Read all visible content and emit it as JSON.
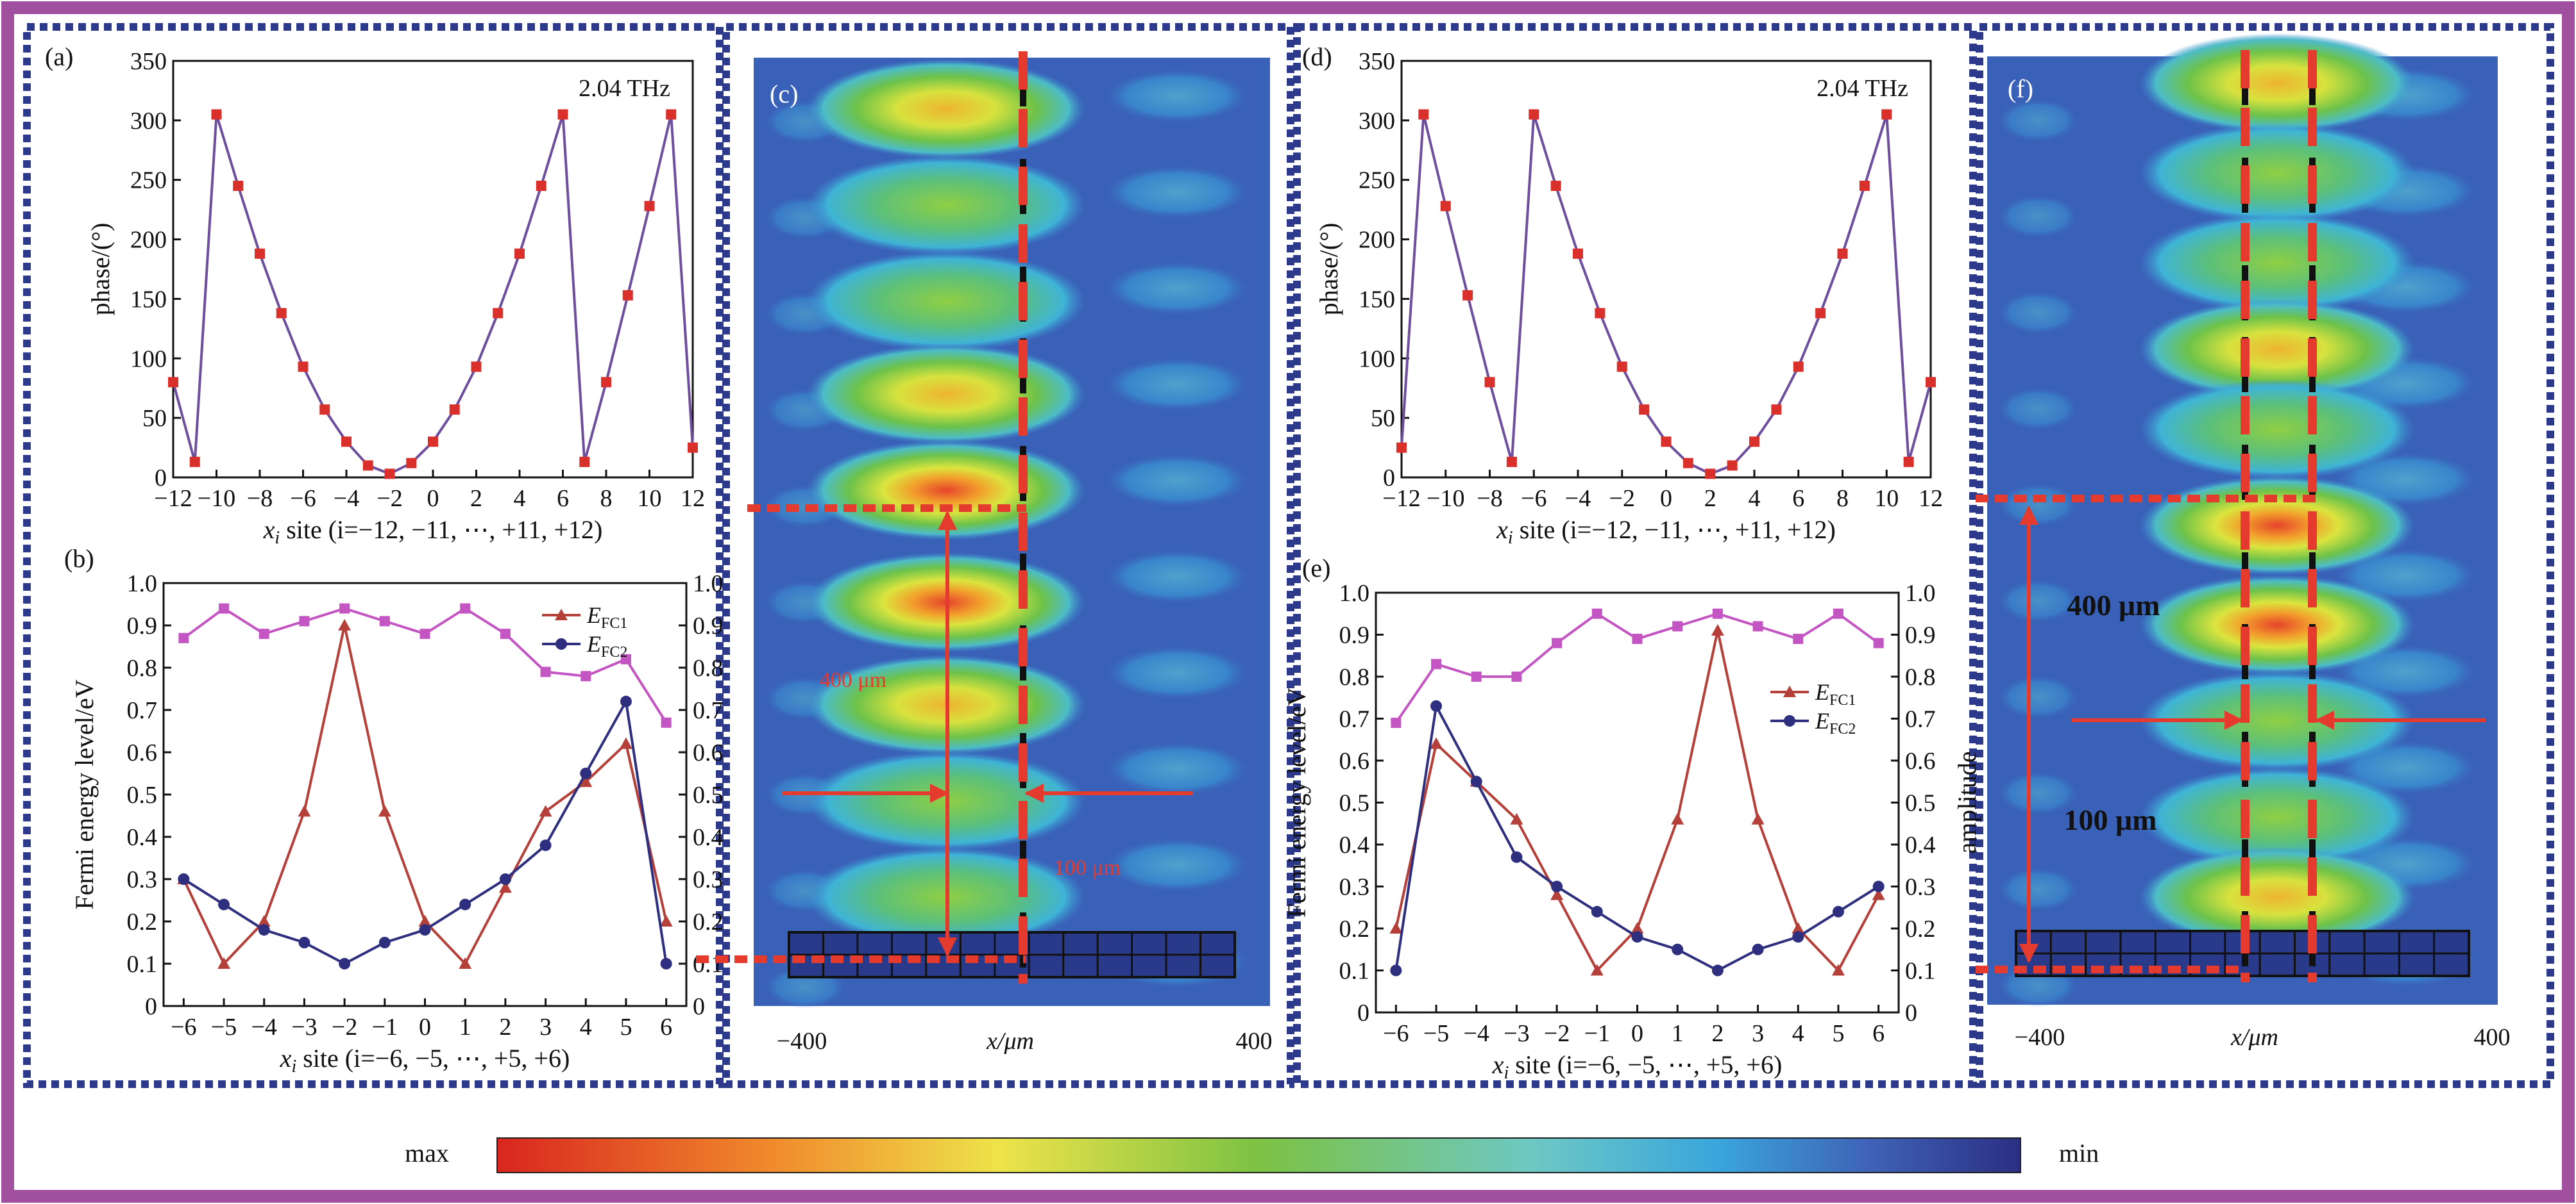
{
  "colors": {
    "frame": "#a0509e",
    "panel_border": "#2d3a8c",
    "phase_marker": "#d9302b",
    "phase_line": "#6e4f9e",
    "efc1": "#b5403a",
    "efc2": "#2e2f7e",
    "amplitude": "#c456c3",
    "guide_red": "#e53b2f",
    "guide_black": "#111111"
  },
  "panels": {
    "a": {
      "label": "(a)"
    },
    "b": {
      "label": "(b)"
    },
    "c": {
      "label": "(c)",
      "ann_400": "400 μm",
      "ann_100": "100 μm",
      "x_left": "−400",
      "x_mid": "x/μm",
      "x_right": "400"
    },
    "d": {
      "label": "(d)"
    },
    "e": {
      "label": "(e)"
    },
    "f": {
      "label": "(f)",
      "ann_400": "400 μm",
      "ann_100": "100 μm",
      "x_left": "−400",
      "x_mid": "x/μm",
      "x_right": "400"
    }
  },
  "colorbar": {
    "max_label": "max",
    "min_label": "min"
  },
  "chart_data": [
    {
      "id": "a",
      "type": "line",
      "annotation": "2.04 THz",
      "xlabel": "x_i site (i=−12, −11, ⋯, +11, +12)",
      "ylabel": "phase/(°)",
      "xlim": [
        -12,
        12
      ],
      "ylim": [
        0,
        350
      ],
      "xticks": [
        "−12",
        "−10",
        "−8",
        "−6",
        "−4",
        "−2",
        "0",
        "2",
        "4",
        "6",
        "8",
        "10",
        "12"
      ],
      "yticks": [
        "0",
        "50",
        "100",
        "150",
        "200",
        "250",
        "300",
        "350"
      ],
      "x": [
        -12,
        -11,
        -10,
        -9,
        -8,
        -7,
        -6,
        -5,
        -4,
        -3,
        -2,
        -1,
        0,
        1,
        2,
        3,
        4,
        5,
        6,
        7,
        8,
        9,
        10,
        11,
        12
      ],
      "series": [
        {
          "values": [
            80,
            13,
            305,
            245,
            188,
            138,
            93,
            57,
            30,
            10,
            3,
            12,
            30,
            57,
            93,
            138,
            188,
            245,
            305,
            13,
            80,
            153,
            228,
            305,
            25
          ]
        }
      ]
    },
    {
      "id": "b",
      "type": "line",
      "xlabel": "x_i site (i=−6, −5, ⋯, +5, +6)",
      "ylabel": "Fermi energy level/eV",
      "xlim": [
        -6.5,
        6.5
      ],
      "ylim": [
        0,
        1.0
      ],
      "y2lim": [
        0,
        1.0
      ],
      "xticks": [
        "−6",
        "−5",
        "−4",
        "−3",
        "−2",
        "−1",
        "0",
        "1",
        "2",
        "3",
        "4",
        "5",
        "6"
      ],
      "yticks": [
        "0",
        "0.1",
        "0.2",
        "0.3",
        "0.4",
        "0.5",
        "0.6",
        "0.7",
        "0.8",
        "0.9",
        "1.0"
      ],
      "y2ticks": [
        "0",
        "0.1",
        "0.2",
        "0.3",
        "0.4",
        "0.5",
        "0.6",
        "0.7",
        "0.8",
        "0.9",
        "1.0"
      ],
      "legend_position": "top-right",
      "x": [
        -6,
        -5,
        -4,
        -3,
        -2,
        -1,
        0,
        1,
        2,
        3,
        4,
        5,
        6
      ],
      "series": [
        {
          "name": "E_FC1",
          "values": [
            0.3,
            0.1,
            0.2,
            0.46,
            0.9,
            0.46,
            0.2,
            0.1,
            0.28,
            0.46,
            0.53,
            0.62,
            0.2
          ]
        },
        {
          "name": "E_FC2",
          "values": [
            0.3,
            0.24,
            0.18,
            0.15,
            0.1,
            0.15,
            0.18,
            0.24,
            0.3,
            0.38,
            0.55,
            0.72,
            0.1
          ]
        },
        {
          "values": [
            0.87,
            0.94,
            0.88,
            0.91,
            0.94,
            0.91,
            0.88,
            0.94,
            0.88,
            0.79,
            0.78,
            0.82,
            0.67
          ],
          "axis": "right"
        }
      ]
    },
    {
      "id": "d",
      "type": "line",
      "annotation": "2.04 THz",
      "xlabel": "x_i site (i=−12, −11, ⋯, +11, +12)",
      "ylabel": "phase/(°)",
      "xlim": [
        -12,
        12
      ],
      "ylim": [
        0,
        350
      ],
      "xticks": [
        "−12",
        "−10",
        "−8",
        "−6",
        "−4",
        "−2",
        "0",
        "2",
        "4",
        "6",
        "8",
        "10",
        "12"
      ],
      "yticks": [
        "0",
        "50",
        "100",
        "150",
        "200",
        "250",
        "300",
        "350"
      ],
      "x": [
        -12,
        -11,
        -10,
        -9,
        -8,
        -7,
        -6,
        -5,
        -4,
        -3,
        -2,
        -1,
        0,
        1,
        2,
        3,
        4,
        5,
        6,
        7,
        8,
        9,
        10,
        11,
        12
      ],
      "series": [
        {
          "values": [
            25,
            305,
            228,
            153,
            80,
            13,
            305,
            245,
            188,
            138,
            93,
            57,
            30,
            12,
            3,
            10,
            30,
            57,
            93,
            138,
            188,
            245,
            305,
            13,
            80
          ]
        }
      ]
    },
    {
      "id": "e",
      "type": "line",
      "xlabel": "x_i site (i=−6, −5, ⋯, +5, +6)",
      "ylabel": "Fermi energy level/eV",
      "y2label": "amplitude",
      "xlim": [
        -6.5,
        6.5
      ],
      "ylim": [
        0,
        1.0
      ],
      "y2lim": [
        0,
        1.0
      ],
      "xticks": [
        "−6",
        "−5",
        "−4",
        "−3",
        "−2",
        "−1",
        "0",
        "1",
        "2",
        "3",
        "4",
        "5",
        "6"
      ],
      "yticks": [
        "0",
        "0.1",
        "0.2",
        "0.3",
        "0.4",
        "0.5",
        "0.6",
        "0.7",
        "0.8",
        "0.9",
        "1.0"
      ],
      "y2ticks": [
        "0",
        "0.1",
        "0.2",
        "0.3",
        "0.4",
        "0.5",
        "0.6",
        "0.7",
        "0.8",
        "0.9",
        "1.0"
      ],
      "legend_position": "right",
      "x": [
        -6,
        -5,
        -4,
        -3,
        -2,
        -1,
        0,
        1,
        2,
        3,
        4,
        5,
        6
      ],
      "series": [
        {
          "name": "E_FC1",
          "values": [
            0.2,
            0.64,
            0.55,
            0.46,
            0.28,
            0.1,
            0.2,
            0.46,
            0.91,
            0.46,
            0.2,
            0.1,
            0.28
          ]
        },
        {
          "name": "E_FC2",
          "values": [
            0.1,
            0.73,
            0.55,
            0.37,
            0.3,
            0.24,
            0.18,
            0.15,
            0.1,
            0.15,
            0.18,
            0.24,
            0.3
          ]
        },
        {
          "values": [
            0.69,
            0.83,
            0.8,
            0.8,
            0.88,
            0.95,
            0.89,
            0.92,
            0.95,
            0.92,
            0.89,
            0.95,
            0.88
          ],
          "axis": "right"
        }
      ]
    }
  ]
}
